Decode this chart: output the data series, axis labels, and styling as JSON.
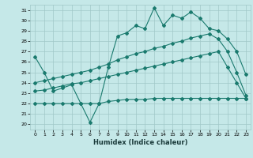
{
  "xlabel": "Humidex (Indice chaleur)",
  "bg_color": "#c5e8e8",
  "grid_color": "#a0c8c8",
  "line_color": "#1a7a6e",
  "xlim": [
    -0.5,
    23.5
  ],
  "ylim": [
    19.5,
    31.5
  ],
  "yticks": [
    20,
    21,
    22,
    23,
    24,
    25,
    26,
    27,
    28,
    29,
    30,
    31
  ],
  "xticks": [
    0,
    1,
    2,
    3,
    4,
    5,
    6,
    7,
    8,
    9,
    10,
    11,
    12,
    13,
    14,
    15,
    16,
    17,
    18,
    19,
    20,
    21,
    22,
    23
  ],
  "line1_x": [
    0,
    1,
    2,
    3,
    4,
    5,
    6,
    7,
    8,
    9,
    10,
    11,
    12,
    13,
    14,
    15,
    16,
    17,
    18,
    19,
    20,
    21,
    22,
    23
  ],
  "line1_y": [
    26.5,
    25.0,
    23.2,
    23.5,
    23.8,
    22.0,
    20.2,
    22.0,
    25.5,
    28.5,
    28.8,
    29.5,
    29.2,
    31.2,
    29.5,
    30.5,
    30.2,
    30.8,
    30.2,
    29.2,
    29.0,
    28.2,
    27.0,
    24.8
  ],
  "line2_x": [
    0,
    1,
    2,
    3,
    4,
    5,
    6,
    7,
    8,
    9,
    10,
    11,
    12,
    13,
    14,
    15,
    16,
    17,
    18,
    19,
    20,
    21,
    22,
    23
  ],
  "line2_y": [
    24.0,
    24.2,
    24.4,
    24.6,
    24.8,
    25.0,
    25.2,
    25.5,
    25.8,
    26.2,
    26.5,
    26.8,
    27.0,
    27.3,
    27.5,
    27.8,
    28.0,
    28.3,
    28.5,
    28.7,
    28.2,
    27.0,
    25.0,
    22.8
  ],
  "line3_x": [
    0,
    1,
    2,
    3,
    4,
    5,
    6,
    7,
    8,
    9,
    10,
    11,
    12,
    13,
    14,
    15,
    16,
    17,
    18,
    19,
    20,
    21,
    22,
    23
  ],
  "line3_y": [
    23.2,
    23.3,
    23.5,
    23.7,
    23.9,
    24.0,
    24.2,
    24.4,
    24.6,
    24.8,
    25.0,
    25.2,
    25.4,
    25.6,
    25.8,
    26.0,
    26.2,
    26.4,
    26.6,
    26.8,
    27.0,
    25.5,
    24.0,
    22.5
  ],
  "line4_x": [
    0,
    1,
    2,
    3,
    4,
    5,
    6,
    7,
    8,
    9,
    10,
    11,
    12,
    13,
    14,
    15,
    16,
    17,
    18,
    19,
    20,
    21,
    22,
    23
  ],
  "line4_y": [
    22.0,
    22.0,
    22.0,
    22.0,
    22.0,
    22.0,
    22.0,
    22.0,
    22.2,
    22.3,
    22.4,
    22.4,
    22.4,
    22.5,
    22.5,
    22.5,
    22.5,
    22.5,
    22.5,
    22.5,
    22.5,
    22.5,
    22.5,
    22.5
  ]
}
